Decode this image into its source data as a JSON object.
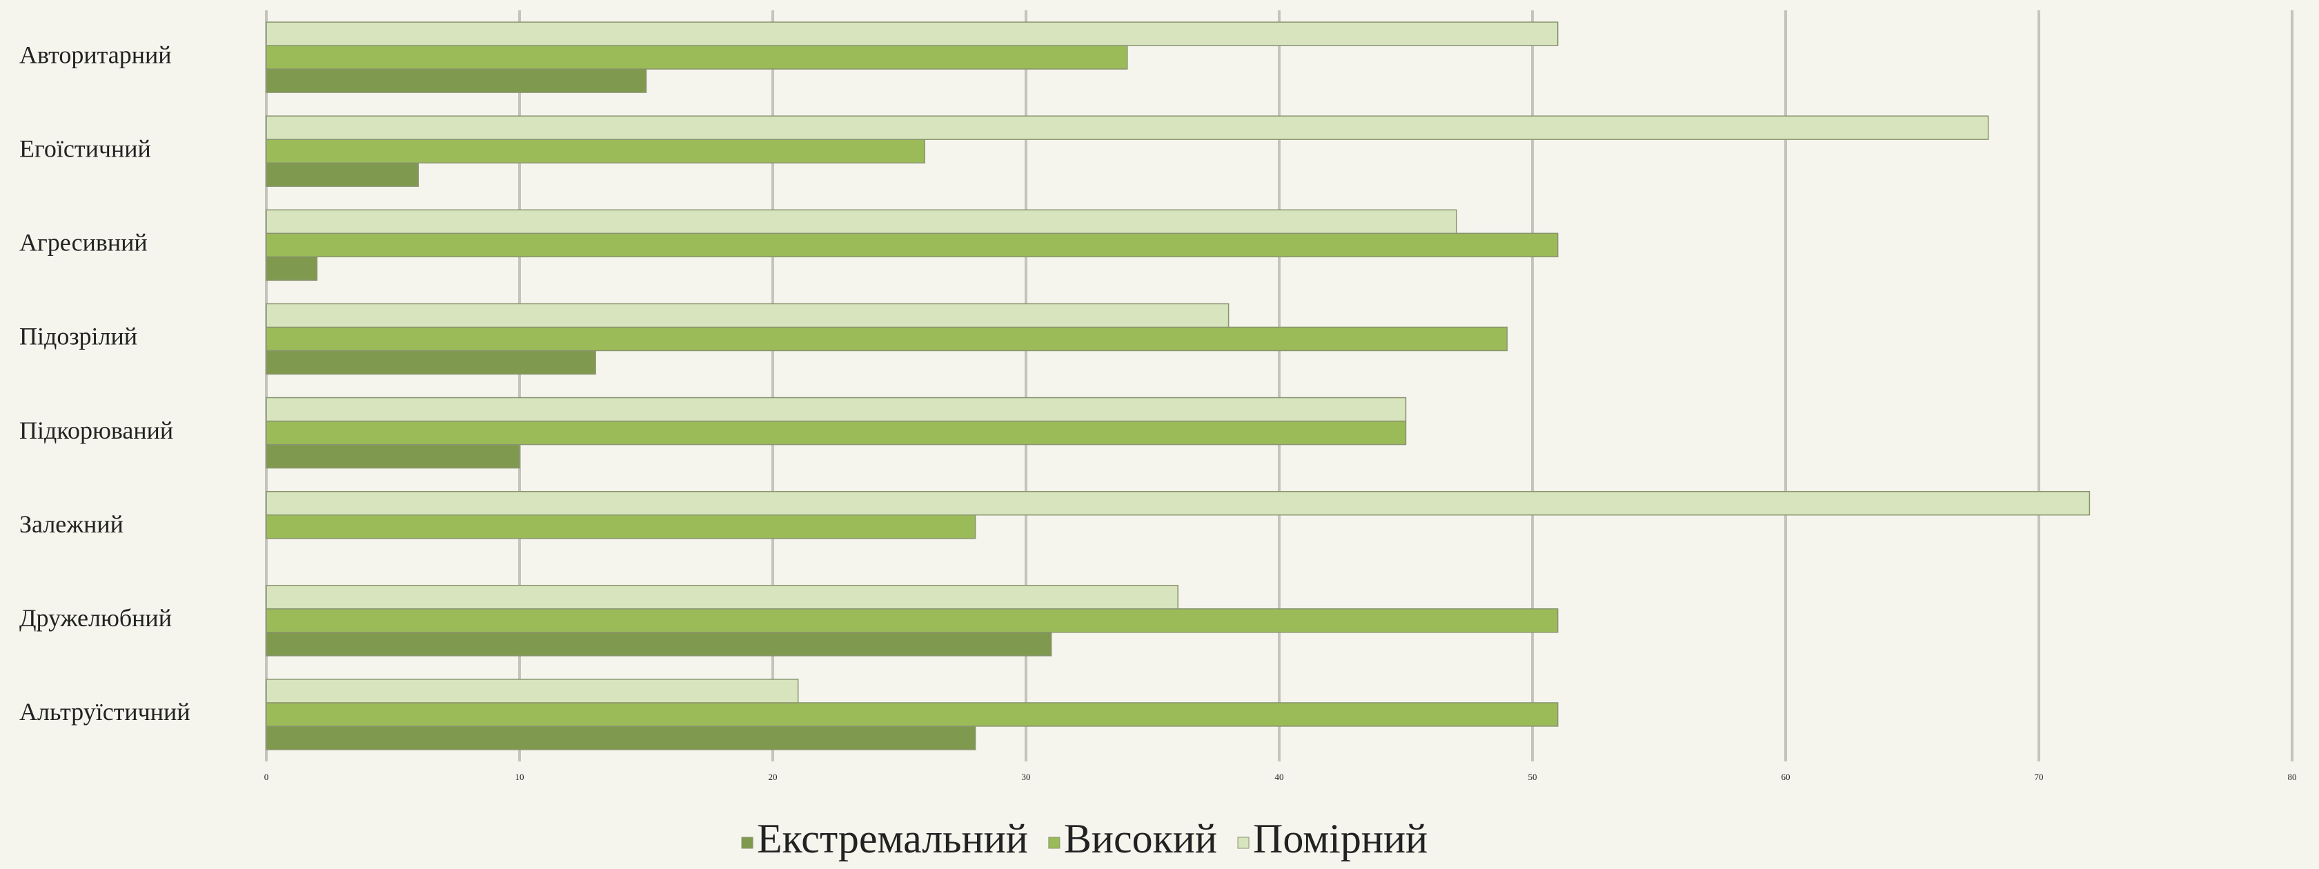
{
  "chart_data": {
    "type": "barh",
    "categories": [
      "Авторитарний",
      "Егоїстичний",
      "Агресивний",
      "Підозрілий",
      "Підкорюваний",
      "Залежний",
      "Дружелюбний",
      "Альтруїстичний"
    ],
    "series": [
      {
        "name": "Екстремальний",
        "color": "#7f9a4f",
        "values": [
          15,
          6,
          2,
          13,
          10,
          0,
          31,
          28
        ]
      },
      {
        "name": "Високий",
        "color": "#9bbb59",
        "values": [
          34,
          26,
          51,
          49,
          45,
          28,
          51,
          51
        ]
      },
      {
        "name": "Помірний",
        "color": "#d7e4bd",
        "values": [
          51,
          68,
          47,
          38,
          45,
          72,
          36,
          21
        ]
      }
    ],
    "xlim": [
      0,
      80
    ],
    "xticks": [
      0,
      10,
      20,
      30,
      40,
      50,
      60,
      70,
      80
    ],
    "grid": true,
    "legend": "bottom"
  }
}
